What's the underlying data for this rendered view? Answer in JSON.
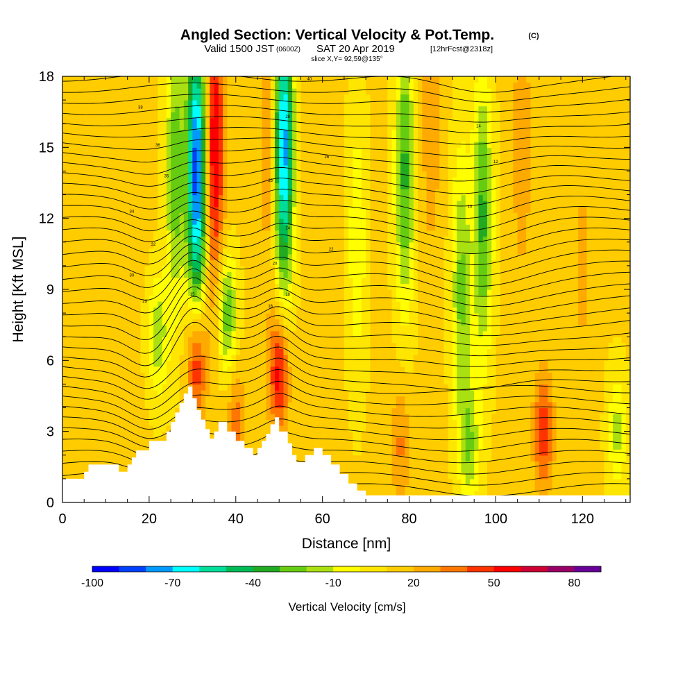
{
  "title": {
    "main": "Angled Section: Vertical Velocity & Pot.Temp.",
    "copyright": "(C)",
    "valid_prefix": "Valid 1500 JST",
    "valid_utc": "(0600Z)",
    "valid_date": "SAT 20 Apr 2019",
    "forecast": "[12hrFcst@2318z]",
    "slice": "slice X,Y= 92,59@135°"
  },
  "chart_data": {
    "type": "heatmap",
    "xlabel": "Distance [nm]",
    "ylabel": "Height [Kft MSL]",
    "xlim": [
      0,
      131
    ],
    "ylim": [
      0,
      18
    ],
    "x_ticks": [
      0,
      20,
      40,
      60,
      80,
      100,
      120
    ],
    "y_ticks": [
      0,
      3,
      6,
      9,
      12,
      15,
      18
    ],
    "x_tick_labels": [
      "0",
      "20",
      "40",
      "60",
      "80",
      "100",
      "120"
    ],
    "y_tick_labels": [
      "0",
      "3",
      "6",
      "9",
      "12",
      "15",
      "18"
    ],
    "colorbar": {
      "title": "Vertical Velocity [cm/s]",
      "levels": [
        -100,
        -90,
        -80,
        -70,
        -60,
        -50,
        -40,
        -30,
        -20,
        -10,
        0,
        10,
        20,
        30,
        40,
        50,
        60,
        70,
        80,
        90
      ],
      "labels": [
        "-100",
        "-70",
        "-40",
        "-10",
        "20",
        "50",
        "80"
      ],
      "label_values": [
        -100,
        -70,
        -40,
        -10,
        20,
        50,
        80
      ],
      "colors": [
        "#0000ff",
        "#0040ff",
        "#0099ff",
        "#00ffff",
        "#00dd99",
        "#00bb55",
        "#22aa22",
        "#66cc11",
        "#aae011",
        "#ffff00",
        "#ffe600",
        "#ffcc00",
        "#ffaa00",
        "#ff7700",
        "#ff3300",
        "#ff0000",
        "#cc0033",
        "#990066",
        "#660099"
      ]
    },
    "velocity_features": [
      {
        "x": 31,
        "y": 14,
        "w": -95
      },
      {
        "x": 35,
        "y": 15,
        "w": 55
      },
      {
        "x": 26,
        "y": 14,
        "w": -35
      },
      {
        "x": 51,
        "y": 15,
        "w": -85
      },
      {
        "x": 48,
        "y": 15,
        "w": 25
      },
      {
        "x": 31,
        "y": 6,
        "w": 50
      },
      {
        "x": 50,
        "y": 5.5,
        "w": 50
      },
      {
        "x": 38,
        "y": 8,
        "w": -35
      },
      {
        "x": 79,
        "y": 14,
        "w": -40
      },
      {
        "x": 97,
        "y": 12,
        "w": -40
      },
      {
        "x": 92,
        "y": 9,
        "w": -30
      },
      {
        "x": 111,
        "y": 3,
        "w": 40
      },
      {
        "x": 94,
        "y": 2.5,
        "w": -25
      },
      {
        "x": 78,
        "y": 2.5,
        "w": 25
      },
      {
        "x": 106,
        "y": 15,
        "w": 20
      },
      {
        "x": 22,
        "y": 7,
        "w": -25
      },
      {
        "x": 40,
        "y": 3,
        "w": 30
      },
      {
        "x": 128,
        "y": 3,
        "w": -20
      },
      {
        "x": 85,
        "y": 16,
        "w": 20
      },
      {
        "x": 120,
        "y": 10,
        "w": 15
      },
      {
        "x": 68,
        "y": 11,
        "w": -15
      }
    ],
    "terrain_profile": {
      "x": [
        0,
        5,
        5,
        6,
        6,
        8,
        8,
        13,
        13,
        15,
        15,
        16,
        16,
        17,
        17,
        20,
        20,
        24,
        24,
        25,
        25,
        26,
        26,
        27,
        27,
        28,
        28,
        29,
        29,
        30,
        30,
        31,
        31,
        32,
        32,
        33,
        33,
        34,
        34,
        35,
        35,
        36,
        36,
        38,
        38,
        40,
        40,
        42,
        42,
        44,
        44,
        45,
        45,
        46,
        46,
        47,
        47,
        48,
        48,
        49,
        49,
        50,
        50,
        52,
        52,
        53,
        53,
        54,
        54,
        56,
        56,
        58,
        58,
        60,
        60,
        62,
        62,
        64,
        64,
        66,
        66,
        68,
        68,
        70,
        70,
        131
      ],
      "height": [
        1.0,
        1.0,
        1.3,
        1.3,
        1.6,
        1.6,
        1.6,
        1.6,
        1.3,
        1.3,
        1.6,
        1.6,
        1.9,
        1.9,
        2.2,
        2.2,
        2.6,
        2.6,
        3.0,
        3.0,
        3.4,
        3.4,
        3.8,
        3.8,
        4.2,
        4.2,
        4.6,
        4.6,
        4.9,
        4.9,
        4.4,
        4.4,
        3.9,
        3.9,
        3.5,
        3.5,
        3.1,
        3.1,
        2.7,
        2.7,
        3.0,
        3.0,
        3.4,
        3.4,
        3.0,
        3.0,
        2.6,
        2.6,
        2.3,
        2.3,
        2.0,
        2.0,
        2.3,
        2.3,
        2.6,
        2.6,
        2.9,
        2.9,
        3.3,
        3.3,
        3.6,
        3.6,
        3.0,
        3.0,
        2.5,
        2.5,
        2.0,
        2.0,
        1.7,
        1.7,
        2.0,
        2.0,
        2.3,
        2.3,
        2.0,
        2.0,
        1.6,
        1.6,
        1.2,
        1.2,
        0.8,
        0.8,
        0.5,
        0.5,
        0.3,
        0.3
      ]
    },
    "theta_contours": {
      "label_values": [
        "40",
        "38",
        "36",
        "35",
        "34",
        "32",
        "30",
        "29",
        "28",
        "26",
        "25",
        "24",
        "22",
        "20",
        "18",
        "16",
        "15",
        "14",
        "12",
        "10"
      ]
    }
  }
}
